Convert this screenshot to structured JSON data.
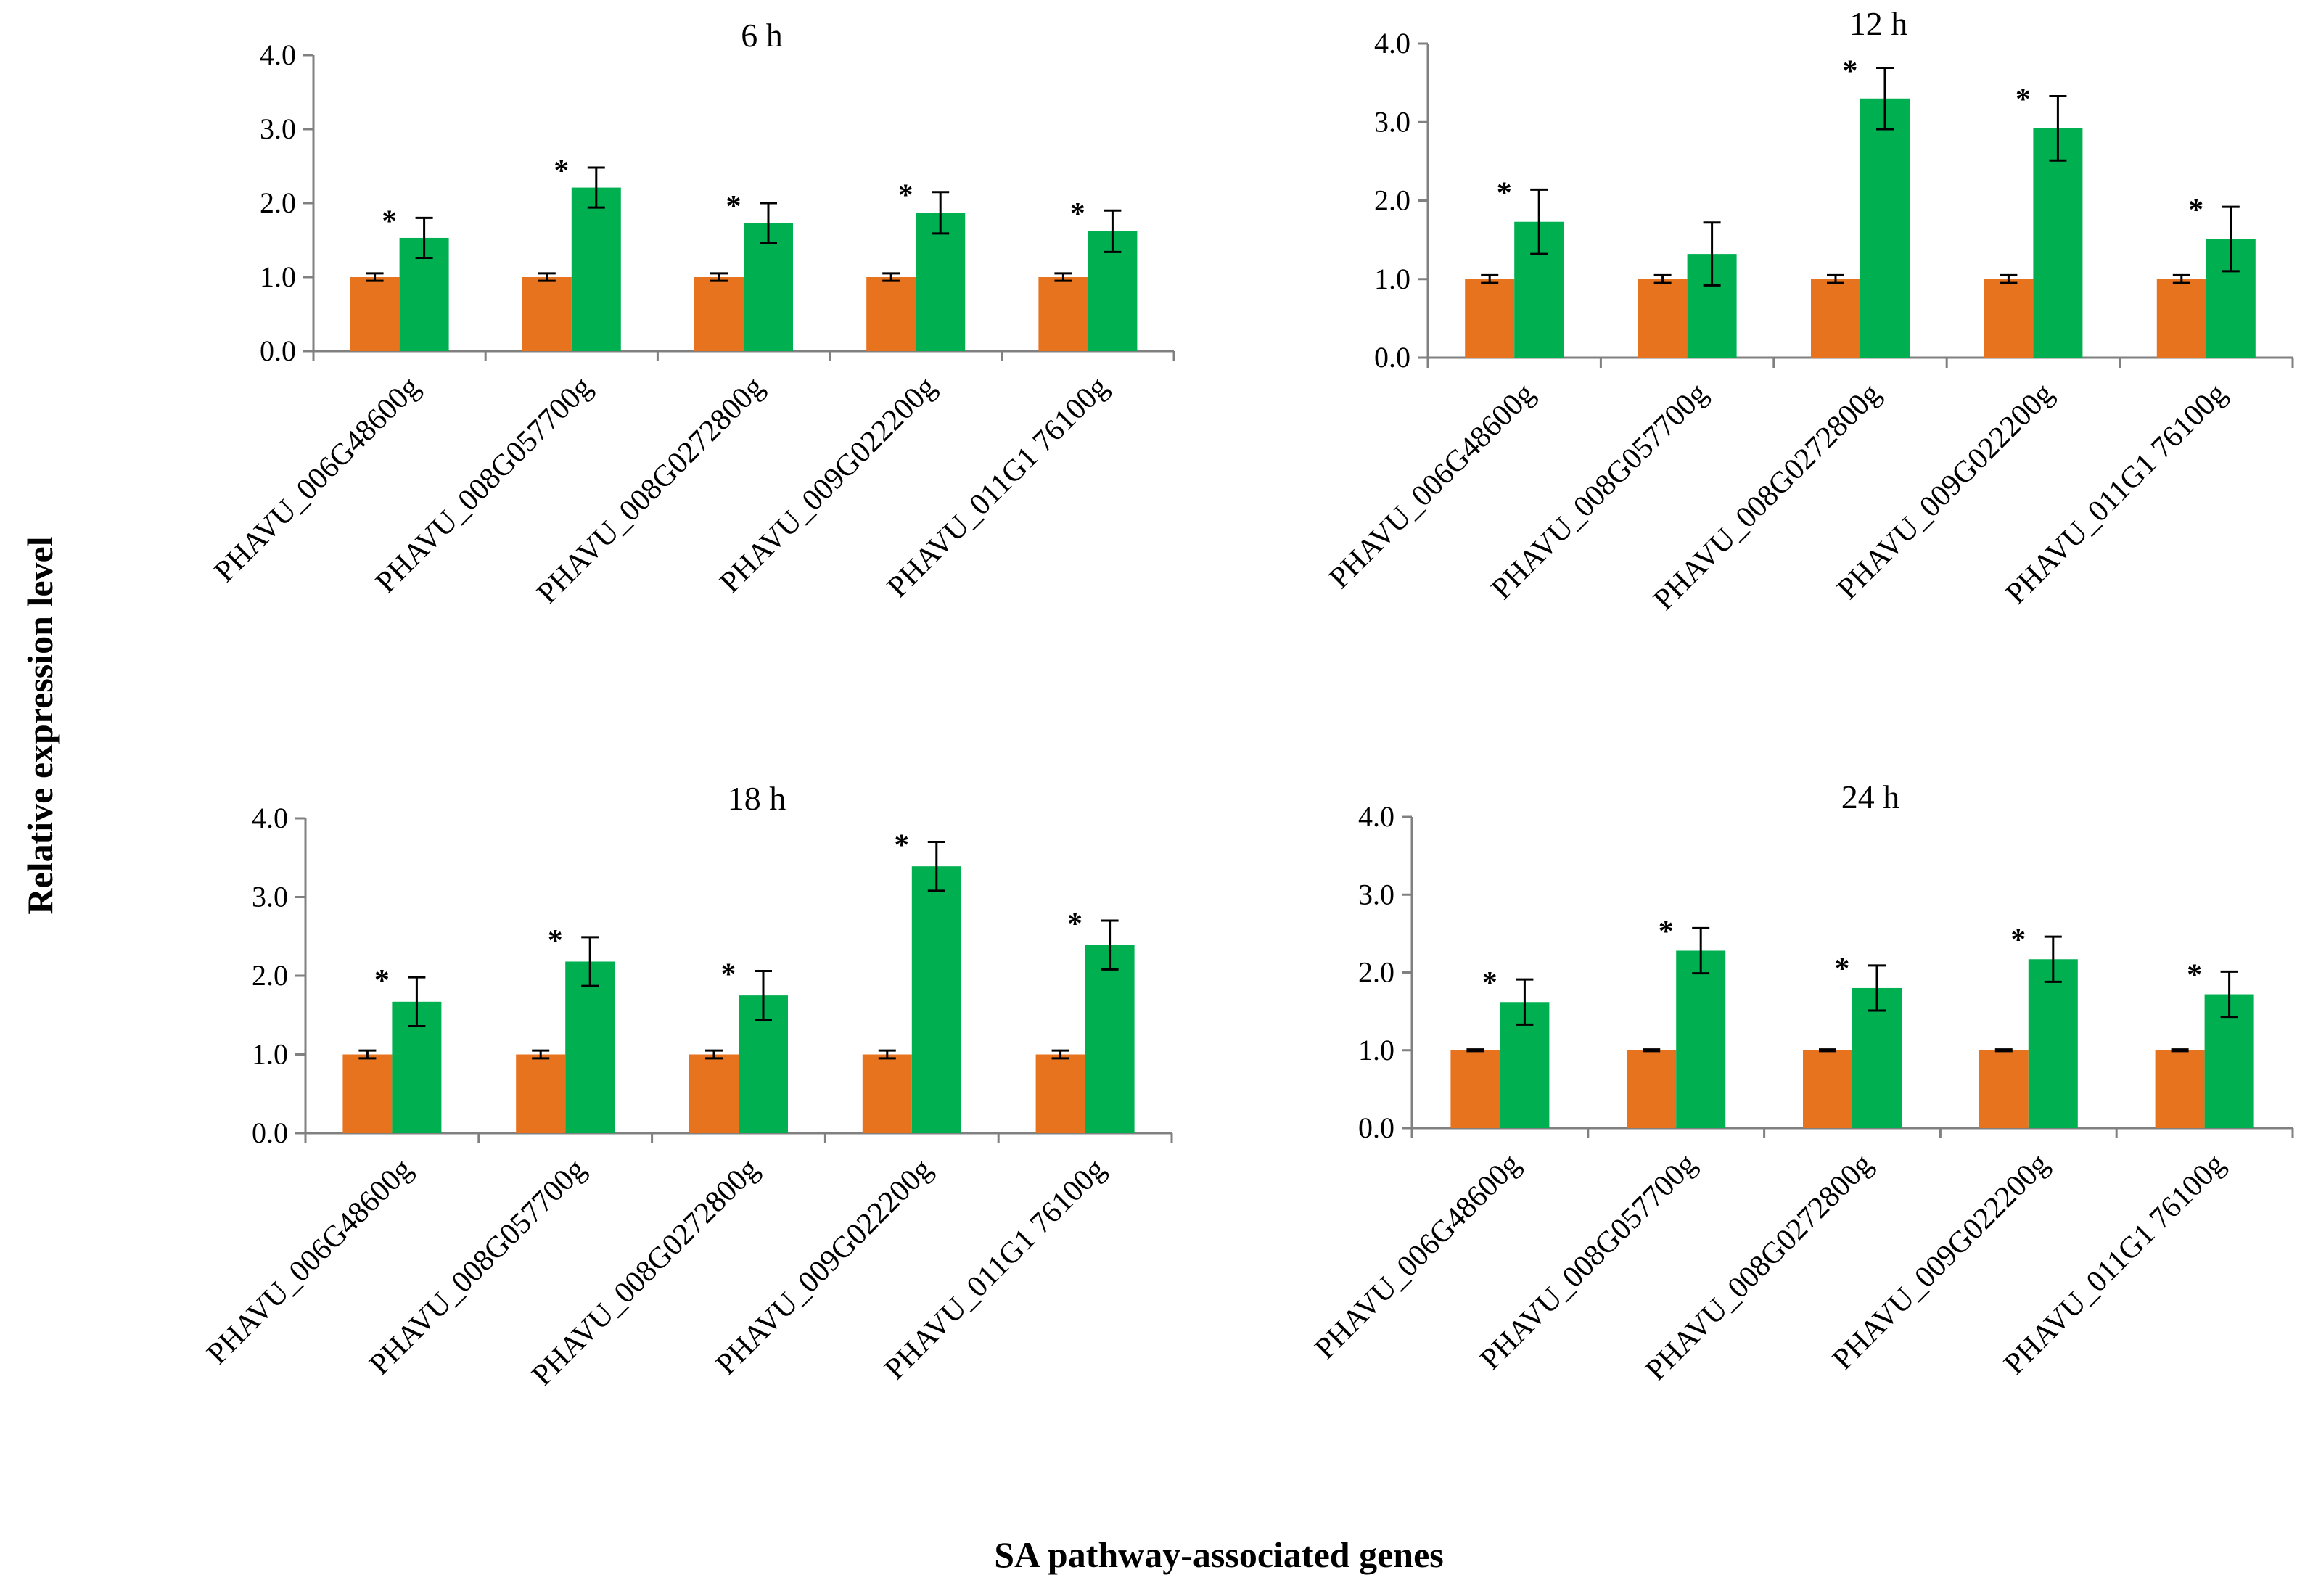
{
  "y_axis_title": "Relative expression level",
  "x_axis_title": "SA pathway-associated genes",
  "colors": {
    "control": "#E8731E",
    "treatment": "#00B050"
  },
  "chart_data": [
    {
      "type": "bar",
      "title": "6 h",
      "categories": [
        "PHAVU_006G48600g",
        "PHAVU_008G057700g",
        "PHAVU_008G0272800g",
        "PHAVU_009G022200g",
        "PHAVU_011G1 76100g"
      ],
      "ylim": [
        0,
        4
      ],
      "yticks": [
        "0.0",
        "1.0",
        "2.0",
        "3.0",
        "4.0"
      ],
      "series": [
        {
          "values": [
            1.0,
            1.0,
            1.0,
            1.0,
            1.0
          ],
          "errors": [
            0.05,
            0.05,
            0.05,
            0.05,
            0.05
          ]
        },
        {
          "values": [
            1.53,
            2.21,
            1.73,
            1.87,
            1.62
          ],
          "errors": [
            0.27,
            0.27,
            0.27,
            0.28,
            0.28
          ]
        }
      ],
      "significance": [
        "*",
        "*",
        "*",
        "*",
        "*"
      ]
    },
    {
      "type": "bar",
      "title": "12 h",
      "categories": [
        "PHAVU_006G48600g",
        "PHAVU_008G057700g",
        "PHAVU_008G0272800g",
        "PHAVU_009G022200g",
        "PHAVU_011G1 76100g"
      ],
      "ylim": [
        0,
        4
      ],
      "yticks": [
        "0.0",
        "1.0",
        "2.0",
        "3.0",
        "4.0"
      ],
      "series": [
        {
          "values": [
            1.0,
            1.0,
            1.0,
            1.0,
            1.0
          ],
          "errors": [
            0.05,
            0.05,
            0.05,
            0.05,
            0.05
          ]
        },
        {
          "values": [
            1.73,
            1.32,
            3.3,
            2.92,
            1.51
          ],
          "errors": [
            0.41,
            0.4,
            0.39,
            0.41,
            0.41
          ]
        }
      ],
      "significance": [
        "*",
        "",
        "*",
        "*",
        "*"
      ]
    },
    {
      "type": "bar",
      "title": "18 h",
      "categories": [
        "PHAVU_006G48600g",
        "PHAVU_008G057700g",
        "PHAVU_008G0272800g",
        "PHAVU_009G022200g",
        "PHAVU_011G1 76100g"
      ],
      "ylim": [
        0,
        4
      ],
      "yticks": [
        "0.0",
        "1.0",
        "2.0",
        "3.0",
        "4.0"
      ],
      "series": [
        {
          "values": [
            1.0,
            1.0,
            1.0,
            1.0,
            1.0
          ],
          "errors": [
            0.05,
            0.05,
            0.05,
            0.05,
            0.05
          ]
        },
        {
          "values": [
            1.67,
            2.18,
            1.75,
            3.39,
            2.39
          ],
          "errors": [
            0.31,
            0.31,
            0.31,
            0.31,
            0.31
          ]
        }
      ],
      "significance": [
        "*",
        "*",
        "*",
        "*",
        "*"
      ]
    },
    {
      "type": "bar",
      "title": "24 h",
      "categories": [
        "PHAVU_006G48600g",
        "PHAVU_008G057700g",
        "PHAVU_008G0272800g",
        "PHAVU_009G022200g",
        "PHAVU_011G1 76100g"
      ],
      "ylim": [
        0,
        4
      ],
      "yticks": [
        "0.0",
        "1.0",
        "2.0",
        "3.0",
        "4.0"
      ],
      "series": [
        {
          "values": [
            1.0,
            1.0,
            1.0,
            1.0,
            1.0
          ],
          "errors": [
            0.01,
            0.01,
            0.01,
            0.01,
            0.01
          ]
        },
        {
          "values": [
            1.62,
            2.28,
            1.8,
            2.17,
            1.72
          ],
          "errors": [
            0.29,
            0.29,
            0.29,
            0.29,
            0.29
          ]
        }
      ],
      "significance": [
        "*",
        "*",
        "*",
        "*",
        "*"
      ]
    }
  ]
}
